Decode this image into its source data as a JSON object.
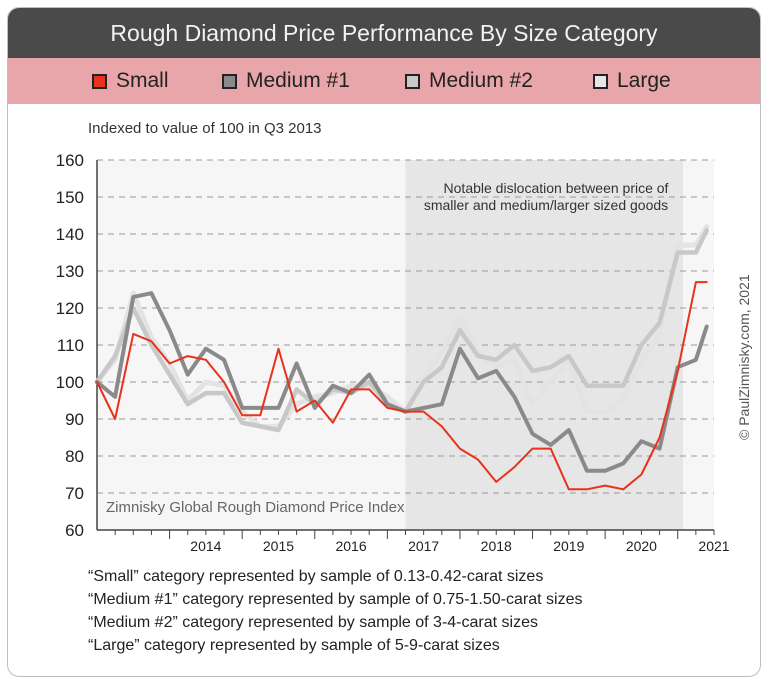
{
  "title": "Rough Diamond Price Performance By Size Category",
  "subtitle": "Indexed to value of 100 in Q3 2013",
  "credit": "© PaulZimnisky.com, 2021",
  "index_name": "Zimnisky Global Rough Diamond Price Index",
  "annotation": [
    "Notable dislocation between price of",
    "smaller and medium/larger sized goods"
  ],
  "footnotes": [
    "“Small” category represented by sample of 0.13-0.42-carat sizes",
    "“Medium #1” category represented by sample of 0.75-1.50-carat sizes",
    "“Medium #2” category represented by sample of 3-4-carat sizes",
    "“Large” category represented by sample of 5-9-carat sizes"
  ],
  "chart_data": {
    "type": "line",
    "ylim": [
      60,
      160
    ],
    "yticks": [
      60,
      70,
      80,
      90,
      100,
      110,
      120,
      130,
      140,
      150,
      160
    ],
    "xlim": [
      2013.0,
      2021.5
    ],
    "xticks": [
      "2014",
      "2015",
      "2016",
      "2017",
      "2018",
      "2019",
      "2020",
      "2021"
    ],
    "grid": "dashed horizontal",
    "shaded_region": [
      2017.25,
      2021.5
    ],
    "series": [
      {
        "name": "Large",
        "color": "#e3e3e3",
        "x": [
          2013.0,
          2013.25,
          2013.5,
          2013.75,
          2014.0,
          2014.25,
          2014.5,
          2014.75,
          2015.0,
          2015.25,
          2015.5,
          2015.75,
          2016.0,
          2016.25,
          2016.5,
          2016.75,
          2017.0,
          2017.25,
          2017.5,
          2017.75,
          2018.0,
          2018.25,
          2018.5,
          2018.75,
          2019.0,
          2019.25,
          2019.5,
          2019.75,
          2020.0,
          2020.25,
          2020.5,
          2020.75,
          2021.0,
          2021.25,
          2021.4
        ],
        "y": [
          100,
          106,
          124,
          112,
          105,
          95,
          100,
          99,
          92,
          88,
          88,
          94,
          96,
          97,
          99,
          99,
          96,
          92,
          101,
          108,
          117,
          108,
          104,
          106,
          94,
          100,
          106,
          92,
          92,
          95,
          106,
          113,
          137,
          137,
          142
        ]
      },
      {
        "name": "Medium #2",
        "color": "#c8c8c8",
        "x": [
          2013.0,
          2013.25,
          2013.5,
          2013.75,
          2014.0,
          2014.25,
          2014.5,
          2014.75,
          2015.0,
          2015.25,
          2015.5,
          2015.75,
          2016.0,
          2016.25,
          2016.5,
          2016.75,
          2017.0,
          2017.25,
          2017.5,
          2017.75,
          2018.0,
          2018.25,
          2018.5,
          2018.75,
          2019.0,
          2019.25,
          2019.5,
          2019.75,
          2020.0,
          2020.25,
          2020.5,
          2020.75,
          2021.0,
          2021.25,
          2021.4
        ],
        "y": [
          100,
          107,
          120,
          110,
          102,
          94,
          97,
          97,
          89,
          88,
          87,
          98,
          94,
          98,
          97,
          100,
          94,
          92,
          100,
          104,
          114,
          107,
          106,
          110,
          103,
          104,
          107,
          99,
          99,
          99,
          110,
          116,
          135,
          135,
          141
        ]
      },
      {
        "name": "Medium #1",
        "color": "#8a8a8a",
        "x": [
          2013.0,
          2013.25,
          2013.5,
          2013.75,
          2014.0,
          2014.25,
          2014.5,
          2014.75,
          2015.0,
          2015.25,
          2015.5,
          2015.75,
          2016.0,
          2016.25,
          2016.5,
          2016.75,
          2017.0,
          2017.25,
          2017.5,
          2017.75,
          2018.0,
          2018.25,
          2018.5,
          2018.75,
          2019.0,
          2019.25,
          2019.5,
          2019.75,
          2020.0,
          2020.25,
          2020.5,
          2020.75,
          2021.0,
          2021.25,
          2021.4
        ],
        "y": [
          100,
          96,
          123,
          124,
          114,
          102,
          109,
          106,
          93,
          93,
          93,
          105,
          93,
          99,
          97,
          102,
          94,
          92,
          93,
          94,
          109,
          101,
          103,
          96,
          86,
          83,
          87,
          76,
          76,
          78,
          84,
          82,
          104,
          106,
          115
        ]
      },
      {
        "name": "Small",
        "color": "#e8321c",
        "x": [
          2013.0,
          2013.25,
          2013.5,
          2013.75,
          2014.0,
          2014.25,
          2014.5,
          2014.75,
          2015.0,
          2015.25,
          2015.5,
          2015.75,
          2016.0,
          2016.25,
          2016.5,
          2016.75,
          2017.0,
          2017.25,
          2017.5,
          2017.75,
          2018.0,
          2018.25,
          2018.5,
          2018.75,
          2019.0,
          2019.25,
          2019.5,
          2019.75,
          2020.0,
          2020.25,
          2020.5,
          2020.75,
          2021.0,
          2021.25,
          2021.4
        ],
        "y": [
          100,
          90,
          113,
          111,
          105,
          107,
          106,
          100,
          91,
          91,
          109,
          92,
          95,
          89,
          98,
          98,
          93,
          92,
          92,
          88,
          82,
          79,
          73,
          77,
          82,
          82,
          71,
          71,
          72,
          71,
          75,
          85,
          103,
          127,
          127
        ]
      }
    ],
    "legend_order": [
      "Small",
      "Medium #1",
      "Medium #2",
      "Large"
    ],
    "legend_position": "top"
  }
}
